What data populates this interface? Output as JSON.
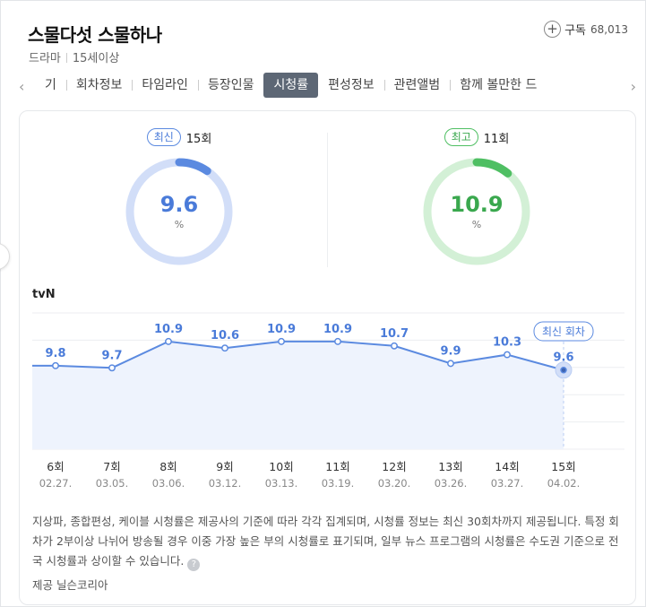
{
  "header": {
    "title": "스물다섯 스물하나",
    "genre": "드라마",
    "rating_age": "15세이상",
    "subscribe_label": "구독",
    "subscribe_count": "68,013"
  },
  "tabs": [
    {
      "label": "기"
    },
    {
      "label": "회차정보"
    },
    {
      "label": "타임라인"
    },
    {
      "label": "등장인물"
    },
    {
      "label": "시청률",
      "active": true
    },
    {
      "label": "편성정보"
    },
    {
      "label": "관련앨범"
    },
    {
      "label": "함께 볼만한 드"
    }
  ],
  "ratings": {
    "latest": {
      "badge": "최신",
      "episode": "15회",
      "value": "9.6",
      "unit": "%",
      "fraction": 0.096,
      "color": "#5b8ae0",
      "track": "#d2def8"
    },
    "best": {
      "badge": "최고",
      "episode": "11회",
      "value": "10.9",
      "unit": "%",
      "fraction": 0.109,
      "color": "#4fbf63",
      "track": "#d3f0d6"
    }
  },
  "channel": "tvN",
  "chart_data": {
    "type": "line",
    "categories": [
      "6회",
      "7회",
      "8회",
      "9회",
      "10회",
      "11회",
      "12회",
      "13회",
      "14회",
      "15회"
    ],
    "dates": [
      "02.27.",
      "03.05.",
      "03.06.",
      "03.12.",
      "03.13.",
      "03.19.",
      "03.20.",
      "03.26.",
      "03.27.",
      "04.02."
    ],
    "values": [
      9.8,
      9.7,
      10.9,
      10.6,
      10.9,
      10.9,
      10.7,
      9.9,
      10.3,
      9.6
    ],
    "latest_marker_label": "최신 회차",
    "line_color": "#5b8ae0",
    "area_color": "#eef3fd"
  },
  "notice": "지상파, 종합편성, 케이블 시청률은 제공사의 기준에 따라 각각 집계되며, 시청률 정보는 최신 30회차까지 제공됩니다. 특정 회차가 2부이상 나뉘어 방송될 경우 이중 가장 높은 부의 시청률로 표기되며, 일부 뉴스 프로그램의 시청률은 수도권 기준으로 전국 시청률과 상이할 수 있습니다.",
  "provider": "제공 닐슨코리아"
}
